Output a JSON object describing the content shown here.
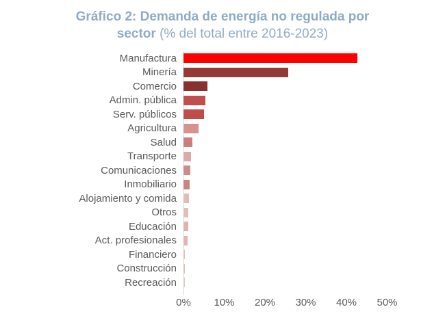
{
  "title": {
    "line1": "Gráfico 2: Demanda de energía no regulada por",
    "line2_bold": "sector",
    "line2_rest": " (% del total entre 2016-2023)",
    "color": "#8FACC5"
  },
  "chart_data": {
    "type": "bar",
    "orientation": "horizontal",
    "title": "Gráfico 2: Demanda de energía no regulada por sector (% del total entre 2016-2023)",
    "categories": [
      "Manufactura",
      "Minería",
      "Comercio",
      "Admin. pública",
      "Serv. públicos",
      "Agricultura",
      "Salud",
      "Transporte",
      "Comunicaciones",
      "Inmobiliario",
      "Alojamiento y comida",
      "Otros",
      "Educación",
      "Act. profesionales",
      "Financiero",
      "Construcción",
      "Recreación"
    ],
    "values": [
      42.7,
      25.7,
      5.8,
      5.3,
      5.1,
      3.7,
      2.2,
      1.9,
      1.7,
      1.5,
      1.3,
      1.2,
      1.1,
      1.0,
      0.4,
      0.3,
      0.25
    ],
    "unit": "%",
    "bar_colors": [
      "#FE0000",
      "#943B38",
      "#8A302D",
      "#C0504D",
      "#BF4E4B",
      "#D6928F",
      "#C97F7C",
      "#DCA9A7",
      "#CD8B89",
      "#CA8583",
      "#E2BCBB",
      "#E2BCBB",
      "#DEB2B0",
      "#E0B6B4",
      "#E4C0BF",
      "#E4C0BF",
      "#E7C6C5"
    ],
    "x_ticks": [
      "0%",
      "10%",
      "20%",
      "30%",
      "40%",
      "50%"
    ],
    "xlim": [
      0,
      50
    ],
    "xlabel": "",
    "ylabel": "",
    "grid": false,
    "legend": false,
    "axis_line_color": "#D8D8D8",
    "label_color": "#595959"
  }
}
